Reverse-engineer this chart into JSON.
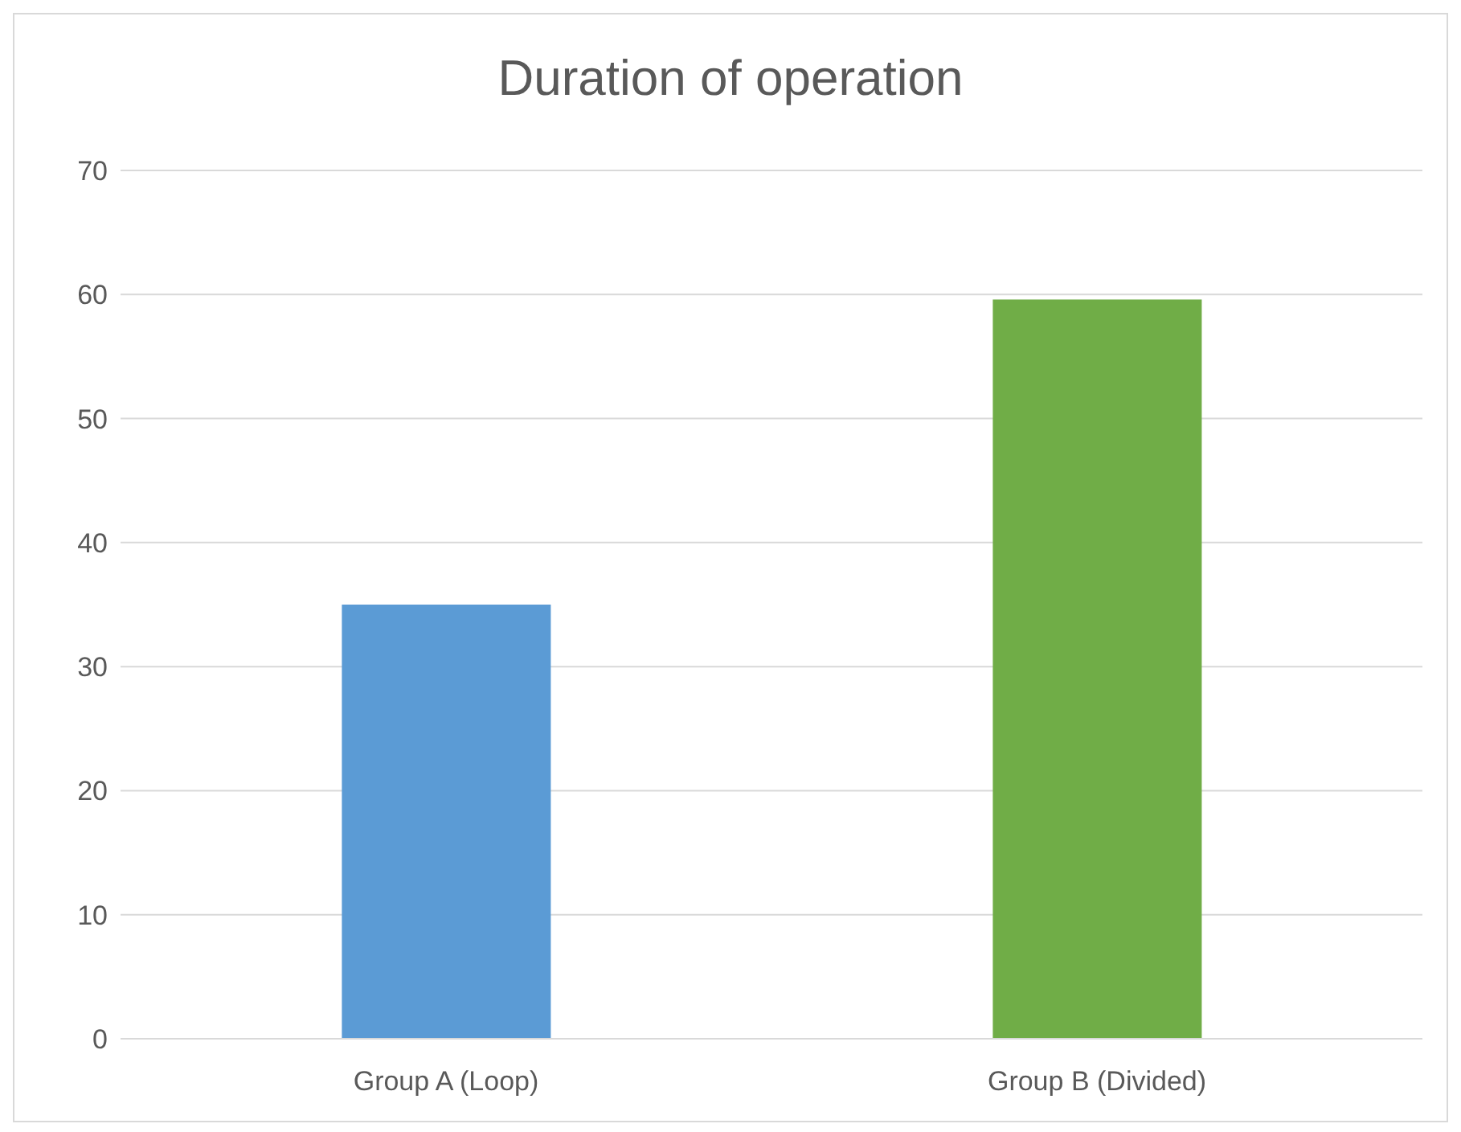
{
  "chart_data": {
    "type": "bar",
    "title": "Duration of operation",
    "categories": [
      "Group A (Loop)",
      "Group B (Divided)"
    ],
    "values": [
      35,
      59.6
    ],
    "colors": [
      "#5b9bd5",
      "#70ad47"
    ],
    "ylim": [
      0,
      70
    ],
    "yticks": [
      0,
      10,
      20,
      30,
      40,
      50,
      60,
      70
    ],
    "grid": "y"
  }
}
